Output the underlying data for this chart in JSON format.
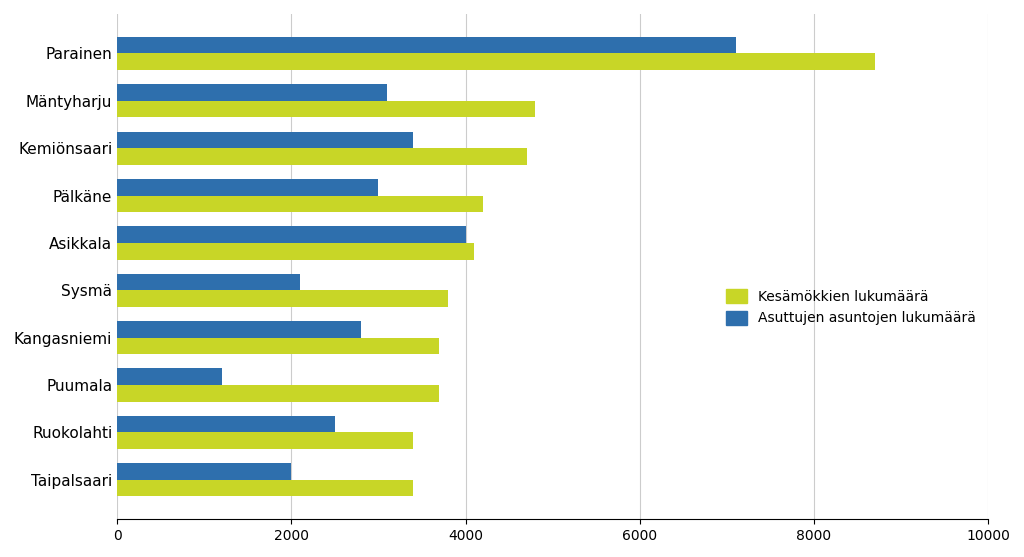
{
  "categories": [
    "Parainen",
    "Mäntyharju",
    "Kemiönsaari",
    "Pälkäne",
    "Asikkala",
    "Sysmä",
    "Kangasniemi",
    "Puumala",
    "Ruokolahti",
    "Taipalsaari"
  ],
  "green_vals": [
    8700,
    4800,
    4700,
    4200,
    4100,
    3800,
    3700,
    3700,
    3400,
    3400
  ],
  "blue_vals": [
    7100,
    3100,
    3400,
    3000,
    4000,
    2100,
    2800,
    1200,
    2500,
    2000
  ],
  "green_color": "#c8d627",
  "blue_color": "#2e6fad",
  "legend_green": "Kesämökkien lukumäärä",
  "legend_blue": "Asuttujen asuntojen lukumäärä",
  "xlim": [
    0,
    10000
  ],
  "xticks": [
    0,
    2000,
    4000,
    6000,
    8000,
    10000
  ],
  "background_color": "#ffffff",
  "grid_color": "#cccccc"
}
